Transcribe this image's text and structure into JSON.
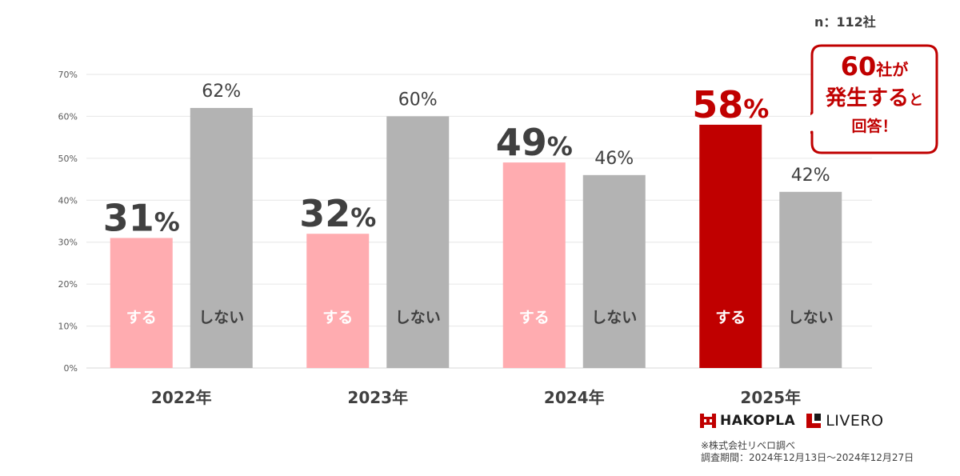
{
  "sample_size": "n：112社",
  "chart_data": {
    "type": "bar",
    "categories": [
      "2022年",
      "2023年",
      "2024年",
      "2025年"
    ],
    "series": [
      {
        "name": "する",
        "values": [
          31,
          32,
          49,
          58
        ]
      },
      {
        "name": "しない",
        "values": [
          62,
          60,
          46,
          42
        ]
      }
    ],
    "value_labels": {
      "suru": [
        "31%",
        "32%",
        "49%",
        "58%"
      ],
      "shinai": [
        "62%",
        "60%",
        "46%",
        "42%"
      ]
    },
    "yticks": [
      "0%",
      "10%",
      "20%",
      "30%",
      "40%",
      "50%",
      "60%",
      "70%"
    ],
    "ylim": [
      0,
      70
    ],
    "grid": true,
    "colors": {
      "suru": "#ffacb0",
      "suru_highlight": "#c00000",
      "shinai": "#b3b3b3",
      "label_dark": "#404040",
      "grid": "#e6e6e6"
    }
  },
  "callout": {
    "line1_main": "60",
    "line1_small": "社が",
    "line2_main": "発生する",
    "line2_small": "と",
    "line3": "回答！"
  },
  "logos": {
    "hakopla": "HAKOPLA",
    "livero": "LIVERO"
  },
  "footnote": {
    "line1": "※株式会社リベロ調べ",
    "line2": "調査期間：2024年12月13日～2024年12月27日"
  }
}
